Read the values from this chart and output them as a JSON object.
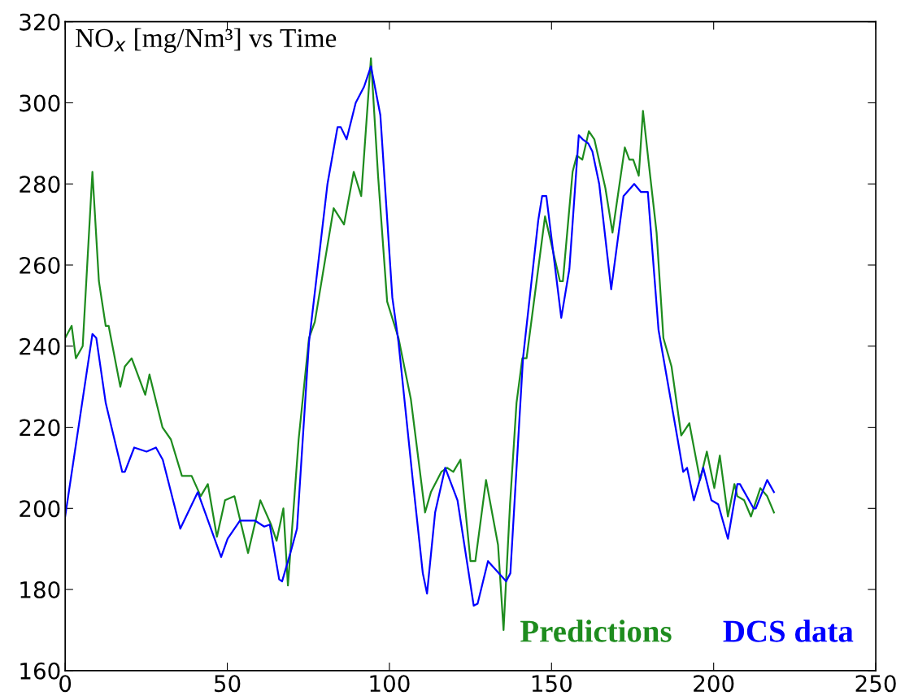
{
  "chart_data": {
    "type": "line",
    "title": "NO$_{x}$ [mg/Nm³] vs Time",
    "xlim": [
      0,
      250
    ],
    "xticks": [
      0,
      50,
      100,
      150,
      200,
      250
    ],
    "ylim": [
      160,
      320
    ],
    "yticks": [
      160,
      180,
      200,
      220,
      240,
      260,
      280,
      300,
      320
    ],
    "grid": false,
    "legend": "bottom right",
    "marker": "none",
    "line_style": "solid",
    "series": [
      {
        "name": "Predictions",
        "color": "#1e8c1e",
        "x": [
          0,
          2,
          3.3,
          5.4,
          8.4,
          10.4,
          12.5,
          13.4,
          17,
          18.4,
          20.5,
          24.7,
          26,
          30,
          32.6,
          36,
          39,
          41.8,
          44,
          46.8,
          49.3,
          52.2,
          56.4,
          60.2,
          63.5,
          65.2,
          67.3,
          68.7,
          72,
          75.2,
          77,
          82.8,
          86,
          89,
          91.3,
          94.3,
          96.5,
          99.3,
          102.8,
          106.6,
          111,
          112.8,
          116,
          117.8,
          119.7,
          121.9,
          125,
          126.5,
          129.8,
          133.5,
          135.2,
          137.2,
          139.2,
          141,
          142.3,
          148,
          152.6,
          153.5,
          156.5,
          157.8,
          159.5,
          161.5,
          163.2,
          166.6,
          168.8,
          172.6,
          174,
          175.2,
          176.9,
          178.2,
          180,
          182.4,
          184.5,
          187,
          190,
          192.5,
          195.8,
          197.9,
          200.2,
          201.9,
          204.4,
          206.4,
          207.3,
          209.4,
          211.5,
          214.4,
          216.5,
          218.6
        ],
        "values": [
          242,
          245,
          237,
          240,
          283,
          256,
          245,
          245,
          230,
          235,
          237,
          228,
          233,
          220,
          217,
          208,
          208,
          203,
          206,
          193,
          202,
          203,
          189,
          202,
          196,
          192,
          200,
          181,
          217,
          242,
          246,
          274,
          270,
          283,
          277,
          311,
          282,
          251,
          242,
          227,
          199,
          204,
          209,
          210,
          209,
          212,
          187,
          187,
          207,
          191,
          170,
          201,
          226,
          237,
          237,
          272,
          256,
          256,
          283,
          287,
          286,
          293,
          291,
          279,
          268,
          289,
          286,
          286,
          282,
          298,
          285,
          268,
          242,
          235,
          218,
          221,
          207,
          214,
          205,
          213,
          198,
          206,
          203,
          202,
          198,
          205,
          203,
          199
        ]
      },
      {
        "name": "DCS data",
        "color": "#0000ff",
        "x": [
          0,
          8.4,
          9.6,
          12.5,
          17.6,
          18.4,
          21.3,
          25.1,
          28,
          30.1,
          35.5,
          40.9,
          48.1,
          50.1,
          53.9,
          58.5,
          61.4,
          63.1,
          66,
          66.9,
          69.8,
          71.5,
          75.2,
          80.9,
          84,
          85,
          86.8,
          89.6,
          92.2,
          94.3,
          97.2,
          100.9,
          102.8,
          107.2,
          110.3,
          111.6,
          114.1,
          117.2,
          121,
          126,
          127.2,
          130.4,
          136,
          137.3,
          141.2,
          145.9,
          147.1,
          148.4,
          153,
          155.5,
          158.4,
          159.6,
          161.3,
          162.6,
          164.7,
          168.4,
          172.2,
          175.5,
          177.6,
          179.7,
          183,
          188.9,
          190.6,
          191.8,
          193.9,
          196.8,
          199.3,
          201.4,
          204.4,
          207.3,
          208.1,
          212.3,
          213,
          216.5,
          218.6
        ],
        "values": [
          198,
          243,
          242,
          226,
          209,
          209,
          215,
          214,
          215,
          212,
          195,
          204,
          188,
          192.5,
          197,
          197,
          195.5,
          196,
          182.5,
          182,
          190,
          195,
          241,
          280,
          294,
          294,
          291,
          300,
          304,
          309,
          297,
          252,
          241,
          207,
          184,
          179,
          199,
          210,
          202,
          176,
          176.5,
          187,
          182,
          184,
          237,
          271,
          277,
          277,
          247,
          259,
          292,
          291,
          290,
          288,
          280,
          254,
          277,
          280,
          278,
          278,
          244,
          217,
          209,
          210,
          202,
          210,
          202,
          201,
          192.5,
          206,
          206,
          200,
          200,
          207,
          204
        ]
      }
    ]
  }
}
